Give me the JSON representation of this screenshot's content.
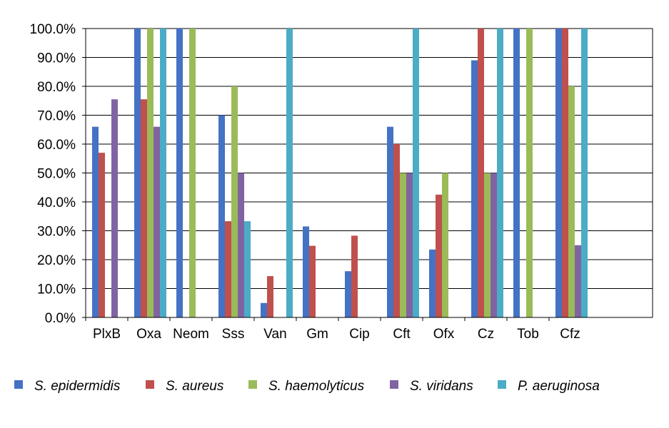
{
  "chart_data": {
    "type": "bar",
    "categories": [
      "PlxB",
      "Oxa",
      "Neom",
      "Sss",
      "Van",
      "Gm",
      "Cip",
      "Cft",
      "Ofx",
      "Cz",
      "Tob",
      "Cfz"
    ],
    "series": [
      {
        "name": "S. epidermidis",
        "color": "#4472c4",
        "values": [
          66,
          100,
          100,
          70,
          5,
          31.5,
          16,
          66,
          23.5,
          89,
          100,
          100
        ]
      },
      {
        "name": "S. aureus",
        "color": "#c0504d",
        "values": [
          57,
          75.5,
          0,
          33.3,
          14.3,
          24.8,
          28.3,
          60,
          42.5,
          100,
          0,
          100
        ]
      },
      {
        "name": "S. haemolyticus",
        "color": "#9bbb59",
        "values": [
          0,
          100,
          100,
          80,
          0,
          0,
          0,
          50,
          50,
          50,
          100,
          80
        ]
      },
      {
        "name": "S. viridans",
        "color": "#8064a2",
        "values": [
          75.5,
          66,
          0,
          50,
          0,
          0,
          0,
          50,
          0,
          50,
          0,
          25
        ]
      },
      {
        "name": "P. aeruginosa",
        "color": "#4bacc6",
        "values": [
          0,
          100,
          0,
          33.3,
          100,
          0,
          0,
          100,
          0,
          100,
          0,
          100
        ]
      }
    ],
    "y_ticks": [
      "0.0%",
      "10.0%",
      "20.0%",
      "30.0%",
      "40.0%",
      "50.0%",
      "60.0%",
      "70.0%",
      "80.0%",
      "90.0%",
      "100.0%"
    ],
    "ylim": [
      0,
      100
    ],
    "grid": true,
    "legend_position": "bottom",
    "title": "",
    "xlabel": "",
    "ylabel": ""
  }
}
